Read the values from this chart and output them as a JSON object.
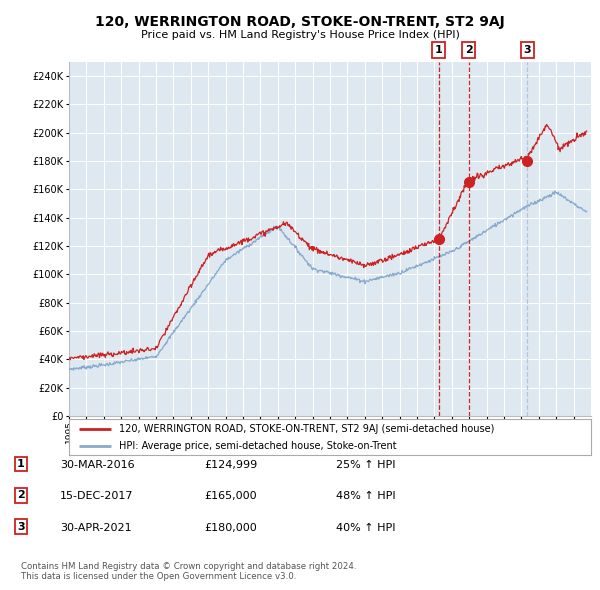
{
  "title": "120, WERRINGTON ROAD, STOKE-ON-TRENT, ST2 9AJ",
  "subtitle": "Price paid vs. HM Land Registry's House Price Index (HPI)",
  "ylabel_vals": [
    0,
    20000,
    40000,
    60000,
    80000,
    100000,
    120000,
    140000,
    160000,
    180000,
    200000,
    220000,
    240000
  ],
  "ylim": [
    0,
    250000
  ],
  "xlim_start": 1995.0,
  "xlim_end": 2025.0,
  "sale_dates": [
    2016.25,
    2017.96,
    2021.33
  ],
  "sale_prices": [
    124999,
    165000,
    180000
  ],
  "sale_labels": [
    "1",
    "2",
    "3"
  ],
  "sale_vline_colors": [
    "#cc0000",
    "#cc0000",
    "#aabbdd"
  ],
  "sale_vline_styles": [
    "--",
    "--",
    "--"
  ],
  "legend_line1": "120, WERRINGTON ROAD, STOKE-ON-TRENT, ST2 9AJ (semi-detached house)",
  "legend_line2": "HPI: Average price, semi-detached house, Stoke-on-Trent",
  "table_rows": [
    [
      "1",
      "30-MAR-2016",
      "£124,999",
      "25% ↑ HPI"
    ],
    [
      "2",
      "15-DEC-2017",
      "£165,000",
      "48% ↑ HPI"
    ],
    [
      "3",
      "30-APR-2021",
      "£180,000",
      "40% ↑ HPI"
    ]
  ],
  "footnote1": "Contains HM Land Registry data © Crown copyright and database right 2024.",
  "footnote2": "This data is licensed under the Open Government Licence v3.0.",
  "line_color_red": "#cc2222",
  "line_color_blue": "#88aacc",
  "bg_color": "#dde8f0",
  "grid_color": "#ffffff",
  "sale_marker_color": "#cc2222",
  "box_edge_color": "#cc2222"
}
